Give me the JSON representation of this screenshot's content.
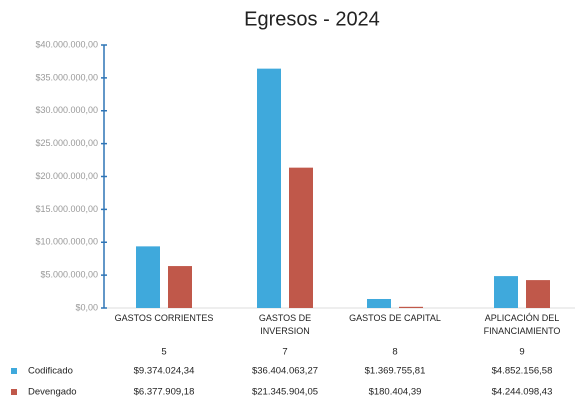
{
  "chart_data": {
    "type": "bar",
    "title": "Egresos - 2024",
    "categories": [
      "GASTOS CORRIENTES",
      "GASTOS DE INVERSION",
      "GASTOS DE CAPITAL",
      "APLICACIÓN DEL FINANCIAMIENTO"
    ],
    "codes": [
      "5",
      "7",
      "8",
      "9"
    ],
    "series": [
      {
        "name": "Codificado",
        "color": "#3fa9dc",
        "values": [
          9374024.34,
          36404063.27,
          1369755.81,
          4852156.58
        ],
        "value_labels": [
          "$9.374.024,34",
          "$36.404.063,27",
          "$1.369.755,81",
          "$4.852.156,58"
        ]
      },
      {
        "name": "Devengado",
        "color": "#c0584a",
        "values": [
          6377909.18,
          21345904.05,
          180404.39,
          4244098.43
        ],
        "value_labels": [
          "$6.377.909,18",
          "$21.345.904,05",
          "$180.404,39",
          "$4.244.098,43"
        ]
      }
    ],
    "ylim": [
      0,
      40000000
    ],
    "yticks": [
      {
        "value": 0,
        "label": "$0,00"
      },
      {
        "value": 5000000,
        "label": "$5.000.000,00"
      },
      {
        "value": 10000000,
        "label": "$10.000.000,00"
      },
      {
        "value": 15000000,
        "label": "$15.000.000,00"
      },
      {
        "value": 20000000,
        "label": "$20.000.000,00"
      },
      {
        "value": 25000000,
        "label": "$25.000.000,00"
      },
      {
        "value": 30000000,
        "label": "$30.000.000,00"
      },
      {
        "value": 35000000,
        "label": "$35.000.000,00"
      },
      {
        "value": 40000000,
        "label": "$40.000.000,00"
      }
    ]
  }
}
